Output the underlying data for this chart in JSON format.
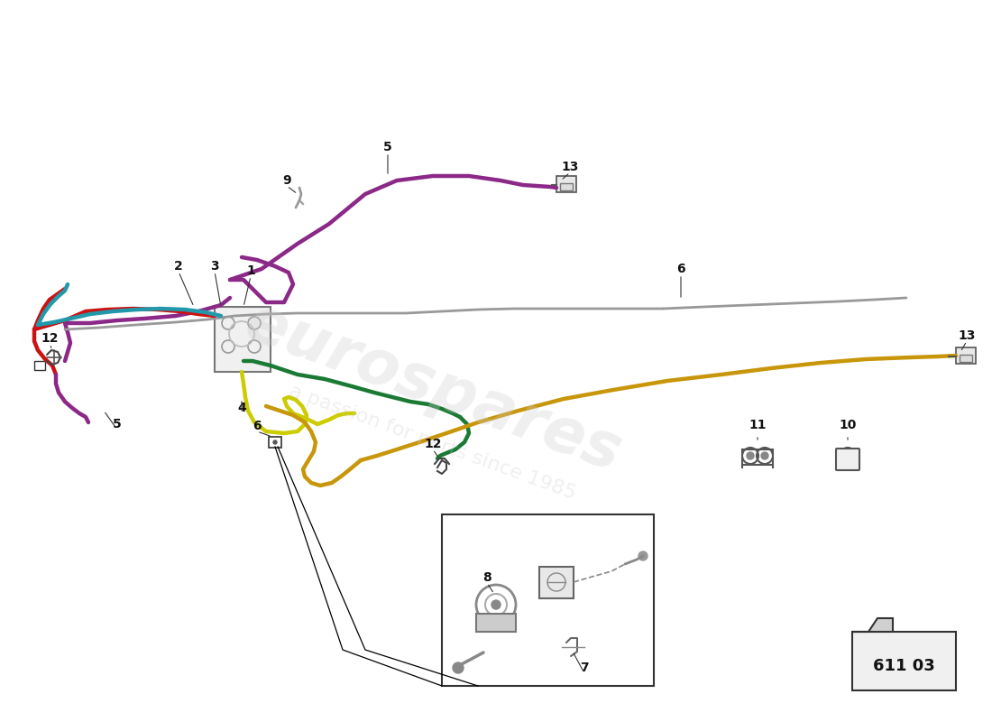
{
  "part_number": "611 03",
  "background_color": "#ffffff",
  "colors": {
    "purple": "#8B2888",
    "red": "#CC1111",
    "teal": "#2299AA",
    "green": "#1A7A35",
    "yellow_green": "#CCCC00",
    "gray": "#999999",
    "gold": "#C8960A",
    "black": "#111111",
    "dark_gray": "#555555"
  },
  "lw_pipe": 3.2,
  "lw_thin": 2.0
}
